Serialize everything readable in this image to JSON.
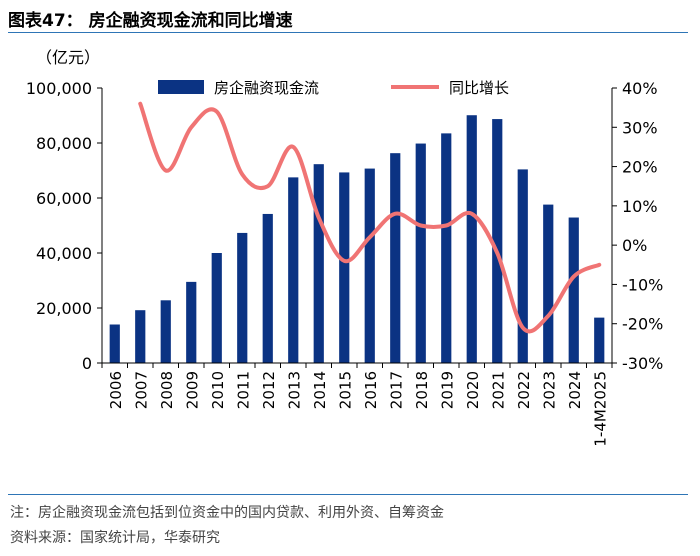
{
  "header": {
    "title": "图表47：  房企融资现金流和同比增速",
    "unit": "（亿元）"
  },
  "footer": {
    "note": "注：房企融资现金流包括到位资金中的国内贷款、利用外资、自筹资金",
    "source": "资料来源：国家统计局，华泰研究"
  },
  "colors": {
    "bar": "#0b3383",
    "line": "#f07474",
    "rule": "#2e75b6"
  },
  "chart_data": {
    "type": "bar",
    "categories": [
      "2006",
      "2007",
      "2008",
      "2009",
      "2010",
      "2011",
      "2012",
      "2013",
      "2014",
      "2015",
      "2016",
      "2017",
      "2018",
      "2019",
      "2020",
      "2021",
      "2022",
      "2023",
      "2024",
      "1-4M2025"
    ],
    "series": [
      {
        "name": "房企融资现金流",
        "type": "bar",
        "axis": "left",
        "values": [
          14000,
          19200,
          22800,
          29500,
          40000,
          47300,
          54200,
          67500,
          72300,
          69300,
          70700,
          76300,
          79800,
          83500,
          90100,
          88700,
          70400,
          57600,
          52900,
          16500
        ]
      },
      {
        "name": "同比增长",
        "type": "line",
        "axis": "right",
        "values": [
          null,
          36,
          19,
          30,
          34,
          18,
          15,
          25,
          7,
          -4,
          2,
          8,
          5,
          5,
          8,
          -2,
          -21,
          -18,
          -8,
          -5
        ]
      }
    ],
    "y_left": {
      "min": 0,
      "max": 100000,
      "ticks": [
        "0",
        "20,000",
        "40,000",
        "60,000",
        "80,000",
        "100,000"
      ]
    },
    "y_right": {
      "min": -30,
      "max": 40,
      "ticks": [
        "-30%",
        "-20%",
        "-10%",
        "0%",
        "10%",
        "20%",
        "30%",
        "40%"
      ]
    },
    "legend": "top-center",
    "grid": false
  }
}
